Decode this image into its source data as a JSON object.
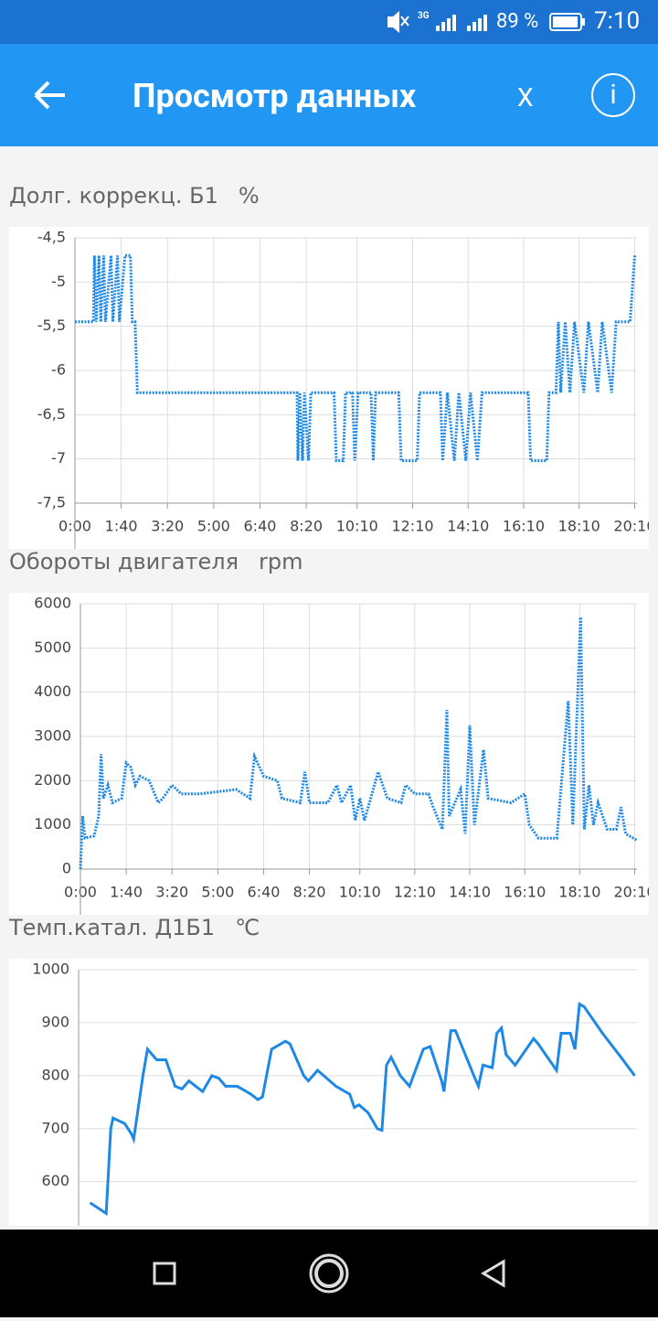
{
  "status_bar": {
    "network": "3G",
    "battery": "89 %",
    "time": "7:10"
  },
  "app_bar": {
    "title": "Просмотр данных",
    "close_label": "X",
    "info_label": "i"
  },
  "chart_data": [
    {
      "type": "line",
      "title": "Долг. коррекц. Б1",
      "unit": "%",
      "color": "#1e88e5",
      "line_style": "dotted",
      "grid": true,
      "xlim": [
        0,
        1215
      ],
      "ylim": [
        -7.5,
        -4.5
      ],
      "yticks": [
        {
          "value": -4.5,
          "label": "-4,5"
        },
        -5,
        {
          "value": -5.5,
          "label": "-5,5"
        },
        -6,
        {
          "value": -6.5,
          "label": "-6,5"
        },
        -7,
        {
          "value": -7.5,
          "label": "-7,5"
        }
      ],
      "xticks": [
        {
          "value": 0,
          "label": "0:00"
        },
        {
          "value": 100,
          "label": "1:40"
        },
        {
          "value": 200,
          "label": "3:20"
        },
        {
          "value": 300,
          "label": "5:00"
        },
        {
          "value": 400,
          "label": "6:40"
        },
        {
          "value": 500,
          "label": "8:20"
        },
        {
          "value": 610,
          "label": "10:10"
        },
        {
          "value": 730,
          "label": "12:10"
        },
        {
          "value": 850,
          "label": "14:10"
        },
        {
          "value": 970,
          "label": "16:10"
        },
        {
          "value": 1090,
          "label": "18:10"
        },
        {
          "value": 1210,
          "label": "20:10"
        }
      ],
      "x": [
        0,
        40,
        42,
        46,
        52,
        56,
        62,
        66,
        78,
        82,
        92,
        96,
        108,
        120,
        124,
        130,
        135,
        480,
        482,
        486,
        492,
        496,
        505,
        510,
        560,
        565,
        580,
        585,
        600,
        605,
        612,
        640,
        645,
        650,
        700,
        705,
        740,
        745,
        790,
        795,
        805,
        820,
        830,
        845,
        855,
        870,
        880,
        900,
        960,
        980,
        985,
        1020,
        1025,
        1040,
        1045,
        1050,
        1060,
        1070,
        1080,
        1100,
        1110,
        1130,
        1140,
        1160,
        1170,
        1200,
        1210
      ],
      "values": [
        -5.45,
        -5.45,
        -4.7,
        -5.45,
        -4.7,
        -5.45,
        -4.7,
        -5.45,
        -4.7,
        -5.45,
        -4.7,
        -5.45,
        -4.7,
        -4.7,
        -5.45,
        -5.45,
        -6.25,
        -6.25,
        -7.02,
        -6.25,
        -7.02,
        -6.25,
        -7.02,
        -6.25,
        -6.25,
        -7.02,
        -7.02,
        -6.25,
        -6.25,
        -7.02,
        -6.25,
        -6.25,
        -7.02,
        -6.25,
        -6.25,
        -7.02,
        -7.02,
        -6.25,
        -6.25,
        -7.02,
        -6.25,
        -7.02,
        -6.25,
        -7.02,
        -6.25,
        -7.02,
        -6.25,
        -6.25,
        -6.25,
        -6.25,
        -7.02,
        -7.02,
        -6.25,
        -6.25,
        -5.45,
        -6.25,
        -5.45,
        -6.25,
        -5.45,
        -6.25,
        -5.45,
        -6.25,
        -5.45,
        -6.25,
        -5.45,
        -5.45,
        -4.7
      ]
    },
    {
      "type": "line",
      "title": "Обороты двигателя",
      "unit": "rpm",
      "color": "#1e88e5",
      "line_style": "dotted",
      "grid": true,
      "xlim": [
        0,
        1215
      ],
      "ylim": [
        0,
        6000
      ],
      "yticks": [
        0,
        1000,
        2000,
        3000,
        4000,
        5000,
        6000
      ],
      "xticks": [
        {
          "value": 0,
          "label": "0:00"
        },
        {
          "value": 100,
          "label": "1:40"
        },
        {
          "value": 200,
          "label": "3:20"
        },
        {
          "value": 300,
          "label": "5:00"
        },
        {
          "value": 400,
          "label": "6:40"
        },
        {
          "value": 500,
          "label": "8:20"
        },
        {
          "value": 610,
          "label": "10:10"
        },
        {
          "value": 730,
          "label": "12:10"
        },
        {
          "value": 850,
          "label": "14:10"
        },
        {
          "value": 970,
          "label": "16:10"
        },
        {
          "value": 1090,
          "label": "18:10"
        },
        {
          "value": 1210,
          "label": "20:10"
        }
      ],
      "x": [
        0,
        5,
        10,
        30,
        40,
        45,
        50,
        60,
        70,
        90,
        100,
        110,
        120,
        130,
        150,
        170,
        180,
        200,
        220,
        260,
        300,
        340,
        370,
        380,
        400,
        430,
        440,
        480,
        490,
        500,
        540,
        560,
        570,
        590,
        600,
        610,
        620,
        650,
        670,
        700,
        710,
        730,
        760,
        770,
        790,
        800,
        805,
        830,
        840,
        850,
        860,
        880,
        890,
        940,
        970,
        980,
        1000,
        1040,
        1065,
        1075,
        1092,
        1100,
        1110,
        1120,
        1130,
        1150,
        1170,
        1180,
        1190,
        1215
      ],
      "values": [
        0,
        1200,
        700,
        750,
        1200,
        2600,
        1600,
        1900,
        1500,
        1600,
        2400,
        2300,
        1900,
        2100,
        2000,
        1500,
        1600,
        1900,
        1700,
        1700,
        1750,
        1800,
        1600,
        2550,
        2100,
        2000,
        1600,
        1500,
        2200,
        1500,
        1500,
        1900,
        1500,
        1900,
        1100,
        1600,
        1100,
        2200,
        1600,
        1500,
        1900,
        1700,
        1700,
        1400,
        900,
        3600,
        1200,
        1800,
        800,
        3250,
        1000,
        2700,
        1600,
        1500,
        1700,
        1000,
        700,
        700,
        3800,
        1000,
        5700,
        900,
        1900,
        1000,
        1500,
        900,
        900,
        1400,
        800,
        650
      ]
    },
    {
      "type": "line",
      "title": "Темп.катал. Д1Б1",
      "unit": "℃",
      "color": "#1e88e5",
      "line_style": "solid",
      "grid": true,
      "xlim": [
        0,
        1215
      ],
      "ylim": [
        520,
        1000
      ],
      "yticks": [
        600,
        700,
        800,
        900,
        1000
      ],
      "x": [
        25,
        60,
        70,
        75,
        100,
        115,
        120,
        140,
        150,
        170,
        190,
        210,
        225,
        240,
        255,
        270,
        290,
        305,
        320,
        345,
        375,
        390,
        400,
        420,
        450,
        460,
        490,
        500,
        520,
        560,
        590,
        600,
        610,
        630,
        650,
        660,
        670,
        680,
        700,
        720,
        750,
        765,
        790,
        795,
        810,
        820,
        860,
        870,
        880,
        900,
        910,
        920,
        930,
        950,
        990,
        1000,
        1040,
        1050,
        1070,
        1080,
        1090,
        1100,
        1140,
        1180,
        1210
      ],
      "values": [
        560,
        540,
        700,
        720,
        710,
        690,
        680,
        800,
        850,
        830,
        830,
        780,
        775,
        790,
        780,
        770,
        800,
        795,
        780,
        780,
        765,
        755,
        760,
        850,
        865,
        860,
        800,
        790,
        810,
        780,
        765,
        740,
        745,
        730,
        700,
        697,
        820,
        835,
        800,
        780,
        850,
        855,
        790,
        770,
        885,
        885,
        800,
        780,
        820,
        815,
        880,
        890,
        840,
        820,
        870,
        860,
        810,
        880,
        880,
        850,
        935,
        930,
        880,
        835,
        800
      ]
    }
  ]
}
